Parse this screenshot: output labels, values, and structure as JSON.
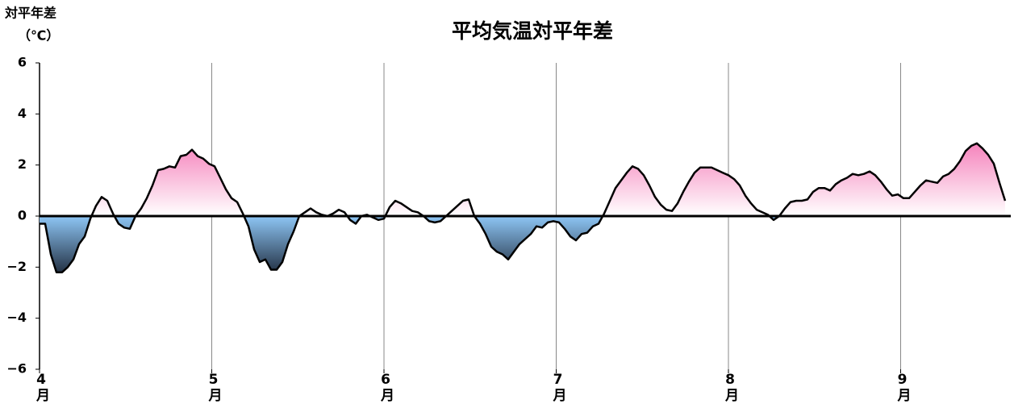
{
  "chart_data": {
    "type": "area",
    "title": "平均気温対平年差",
    "y_label_lines": [
      "対平年差",
      "（℃）"
    ],
    "x": [
      0,
      1,
      2,
      3,
      4,
      5,
      6,
      7,
      8,
      9,
      10,
      11,
      12,
      13,
      14,
      15,
      16,
      17,
      18,
      19,
      20,
      21,
      22,
      23,
      24,
      25,
      26,
      27,
      28,
      29,
      30,
      31,
      32,
      33,
      34,
      35,
      36,
      37,
      38,
      39,
      40,
      41,
      42,
      43,
      44,
      45,
      46,
      47,
      48,
      49,
      50,
      51,
      52,
      53,
      54,
      55,
      56,
      57,
      58,
      59,
      60,
      61,
      62,
      63,
      64,
      65,
      66,
      67,
      68,
      69,
      70,
      71,
      72,
      73,
      74,
      75,
      76,
      77,
      78,
      79,
      80,
      81,
      82,
      83,
      84,
      85,
      86,
      87,
      88,
      89,
      90,
      91,
      92,
      93,
      94,
      95,
      96,
      97,
      98,
      99,
      100,
      101,
      102,
      103,
      104,
      105,
      106,
      107,
      108,
      109,
      110,
      111,
      112,
      113,
      114,
      115,
      116,
      117,
      118,
      119,
      120,
      121,
      122,
      123,
      124,
      125,
      126,
      127,
      128,
      129,
      130,
      131,
      132,
      133,
      134,
      135,
      136,
      137,
      138,
      139,
      140,
      141,
      142,
      143,
      144,
      145,
      146,
      147,
      148,
      149,
      150,
      151,
      152,
      153,
      154,
      155,
      156,
      157,
      158,
      159,
      160,
      161,
      162,
      163,
      164,
      165,
      166,
      167,
      168,
      169,
      170,
      171
    ],
    "values": [
      -0.3,
      -0.3,
      -1.5,
      -2.2,
      -2.2,
      -2.0,
      -1.7,
      -1.1,
      -0.8,
      -0.1,
      0.4,
      0.75,
      0.6,
      0.1,
      -0.3,
      -0.45,
      -0.5,
      0.0,
      0.3,
      0.7,
      1.2,
      1.8,
      1.85,
      1.95,
      1.9,
      2.35,
      2.4,
      2.6,
      2.35,
      2.25,
      2.05,
      1.95,
      1.5,
      1.05,
      0.7,
      0.55,
      0.1,
      -0.4,
      -1.3,
      -1.8,
      -1.7,
      -2.1,
      -2.1,
      -1.8,
      -1.1,
      -0.6,
      0.0,
      0.15,
      0.3,
      0.15,
      0.05,
      0.0,
      0.1,
      0.25,
      0.15,
      -0.15,
      -0.3,
      0.0,
      0.05,
      -0.05,
      -0.15,
      -0.1,
      0.35,
      0.6,
      0.5,
      0.35,
      0.2,
      0.15,
      0.0,
      -0.2,
      -0.25,
      -0.2,
      0.0,
      0.2,
      0.4,
      0.6,
      0.65,
      0.0,
      -0.3,
      -0.7,
      -1.2,
      -1.4,
      -1.5,
      -1.7,
      -1.4,
      -1.1,
      -0.9,
      -0.7,
      -0.4,
      -0.45,
      -0.25,
      -0.2,
      -0.25,
      -0.5,
      -0.8,
      -0.95,
      -0.7,
      -0.65,
      -0.4,
      -0.3,
      0.1,
      0.6,
      1.1,
      1.4,
      1.7,
      1.95,
      1.85,
      1.6,
      1.2,
      0.75,
      0.45,
      0.25,
      0.2,
      0.5,
      0.95,
      1.35,
      1.7,
      1.9,
      1.9,
      1.9,
      1.8,
      1.7,
      1.6,
      1.45,
      1.2,
      0.8,
      0.5,
      0.25,
      0.15,
      0.05,
      -0.15,
      0.0,
      0.3,
      0.55,
      0.6,
      0.6,
      0.65,
      0.95,
      1.1,
      1.1,
      1.0,
      1.25,
      1.4,
      1.5,
      1.65,
      1.6,
      1.65,
      1.75,
      1.6,
      1.35,
      1.05,
      0.8,
      0.85,
      0.7,
      0.7,
      0.95,
      1.2,
      1.4,
      1.35,
      1.3,
      1.55,
      1.65,
      1.85,
      2.15,
      2.55,
      2.75,
      2.85,
      2.65,
      2.4,
      2.05,
      1.3,
      0.6
    ],
    "line_color": "#000000",
    "positive_color": "#f583bc",
    "negative_color": "#8ec6f5",
    "negative_dark_color": "#1c2738",
    "xlim": [
      0,
      172
    ],
    "ylim": [
      -6,
      6
    ],
    "xticks": [
      {
        "value": 0,
        "label": "4月"
      },
      {
        "value": 30.5,
        "label": "5月"
      },
      {
        "value": 61,
        "label": "6月"
      },
      {
        "value": 91.5,
        "label": "7月"
      },
      {
        "value": 122,
        "label": "8月"
      },
      {
        "value": 152.5,
        "label": "9月"
      }
    ],
    "yticks": [
      {
        "value": -6,
        "label": "−6"
      },
      {
        "value": -4,
        "label": "−4"
      },
      {
        "value": -2,
        "label": "−2"
      },
      0,
      2,
      4,
      6
    ],
    "grid": true
  }
}
